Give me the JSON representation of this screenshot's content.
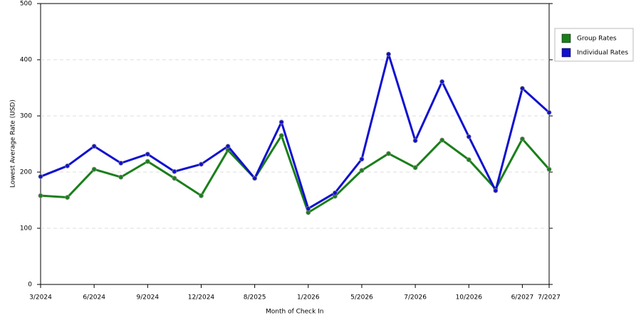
{
  "chart_data": {
    "type": "line",
    "x_label": "Month of Check In",
    "y_label": "Lowest Average Rate (USD)",
    "categories": [
      "3/2024",
      null,
      "6/2024",
      null,
      "9/2024",
      null,
      "12/2024",
      null,
      "8/2025",
      null,
      "1/2026",
      null,
      "5/2026",
      null,
      "7/2026",
      null,
      "10/2026",
      null,
      "6/2027",
      "7/2027"
    ],
    "series": [
      {
        "name": "Group Rates",
        "color": "#1a7f1a",
        "values": [
          158,
          155,
          205,
          191,
          219,
          189,
          158,
          239,
          189,
          265,
          128,
          157,
          203,
          233,
          208,
          257,
          222,
          170,
          259,
          205
        ]
      },
      {
        "name": "Individual Rates",
        "color": "#1010d0",
        "values": [
          192,
          211,
          246,
          216,
          232,
          201,
          214,
          246,
          189,
          289,
          135,
          163,
          223,
          410,
          256,
          361,
          263,
          167,
          349,
          306
        ]
      }
    ],
    "ylim": [
      0,
      500
    ],
    "yticks": [
      0,
      100,
      200,
      300,
      400,
      500
    ],
    "grid": true,
    "legend": "right"
  }
}
